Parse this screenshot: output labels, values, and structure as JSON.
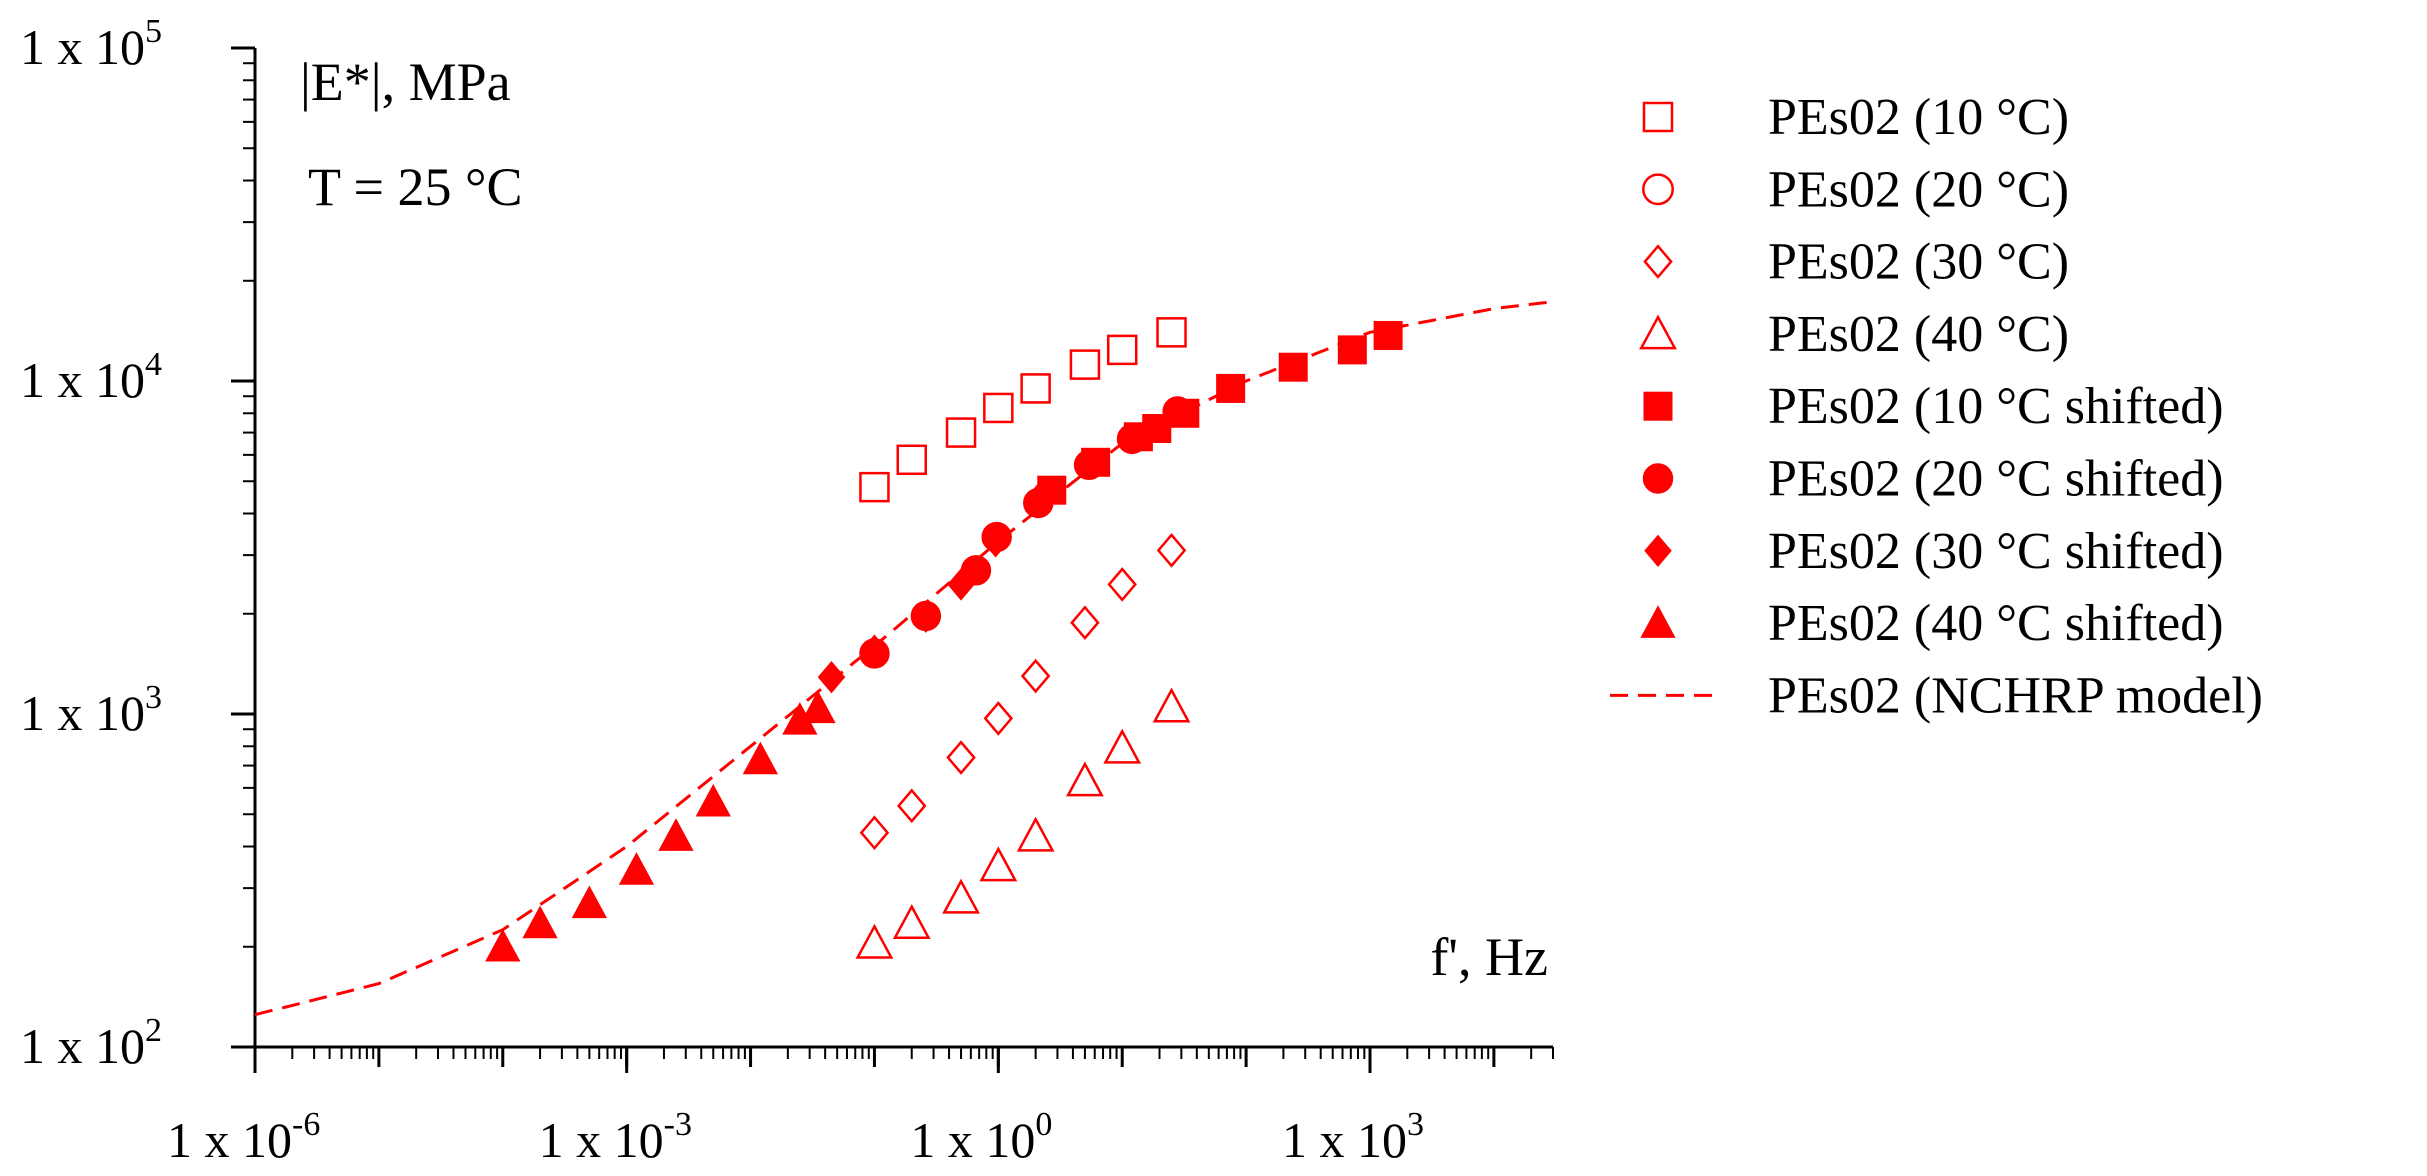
{
  "chart_data": {
    "type": "scatter",
    "title": "",
    "xlabel": "f', Hz",
    "ylabel": "|E*|, MPa",
    "annotation": "T = 25 °C",
    "x_scale": "log",
    "y_scale": "log",
    "xlim": [
      1e-06,
      30000
    ],
    "ylim": [
      100,
      100000
    ],
    "x_ticks": [
      {
        "base": "1 x 10",
        "exp": "-6",
        "value": 1e-06
      },
      {
        "base": "1 x 10",
        "exp": "-3",
        "value": 0.001
      },
      {
        "base": "1 x 10",
        "exp": "0",
        "value": 1
      },
      {
        "base": "1 x 10",
        "exp": "3",
        "value": 1000
      }
    ],
    "y_ticks": [
      {
        "base": "1 x 10",
        "exp": "2",
        "value": 100
      },
      {
        "base": "1 x 10",
        "exp": "3",
        "value": 1000
      },
      {
        "base": "1 x 10",
        "exp": "4",
        "value": 10000
      },
      {
        "base": "1 x 10",
        "exp": "5",
        "value": 100000
      }
    ],
    "legend_position": "right",
    "series": [
      {
        "name": "PEs02 (10 °C)",
        "marker": "square",
        "filled": false,
        "x": [
          0.1,
          0.2,
          0.5,
          1,
          2,
          5,
          10,
          25
        ],
        "y": [
          4800,
          5800,
          7000,
          8300,
          9500,
          11200,
          12400,
          14000
        ]
      },
      {
        "name": "PEs02 (20 °C)",
        "marker": "circle",
        "filled": false,
        "x": [],
        "y": []
      },
      {
        "name": "PEs02 (30 °C)",
        "marker": "diamond",
        "filled": false,
        "x": [
          0.1,
          0.2,
          0.5,
          1,
          2,
          5,
          10,
          25
        ],
        "y": [
          440,
          530,
          740,
          970,
          1300,
          1880,
          2450,
          3100
        ]
      },
      {
        "name": "PEs02 (40 °C)",
        "marker": "triangle",
        "filled": false,
        "x": [
          0.1,
          0.2,
          0.5,
          1,
          2,
          5,
          10,
          25
        ],
        "y": [
          205,
          235,
          280,
          350,
          430,
          630,
          790,
          1050
        ]
      },
      {
        "name": "PEs02 (10 °C shifted)",
        "marker": "square",
        "filled": true,
        "x": [
          2.7,
          6.1,
          13.5,
          19,
          32,
          75,
          240,
          720,
          1400
        ],
        "y": [
          4700,
          5700,
          6800,
          7200,
          8000,
          9500,
          11000,
          12400,
          13700
        ]
      },
      {
        "name": "PEs02 (20 °C shifted)",
        "marker": "circle",
        "filled": true,
        "x": [
          0.1,
          0.26,
          0.66,
          0.97,
          2.1,
          5.4,
          12,
          28
        ],
        "y": [
          1520,
          1970,
          2700,
          3400,
          4300,
          5600,
          6700,
          8100
        ]
      },
      {
        "name": "PEs02 (30 °C shifted)",
        "marker": "diamond",
        "filled": true,
        "x": [
          0.045,
          0.1,
          0.26,
          0.5,
          0.95,
          2.2
        ],
        "y": [
          1290,
          1550,
          1960,
          2450,
          3300,
          4500
        ]
      },
      {
        "name": "PEs02 (40 °C shifted)",
        "marker": "triangle",
        "filled": true,
        "x": [
          0.0001,
          0.0002,
          0.0005,
          0.0012,
          0.0025,
          0.005,
          0.012,
          0.025,
          0.035
        ],
        "y": [
          200,
          235,
          270,
          340,
          430,
          545,
          730,
          960,
          1040
        ]
      },
      {
        "name": "PEs02 (NCHRP model)",
        "marker": "dashed-line",
        "filled": false,
        "x": [
          1e-06,
          1e-05,
          0.0001,
          0.001,
          0.01,
          0.1,
          1,
          10,
          100,
          1000,
          10000,
          30000
        ],
        "y": [
          125,
          155,
          225,
          400,
          800,
          1600,
          3300,
          6500,
          10000,
          14000,
          16500,
          17300
        ]
      }
    ]
  },
  "colors": {
    "series": "#ff0000",
    "axis": "#000000"
  }
}
